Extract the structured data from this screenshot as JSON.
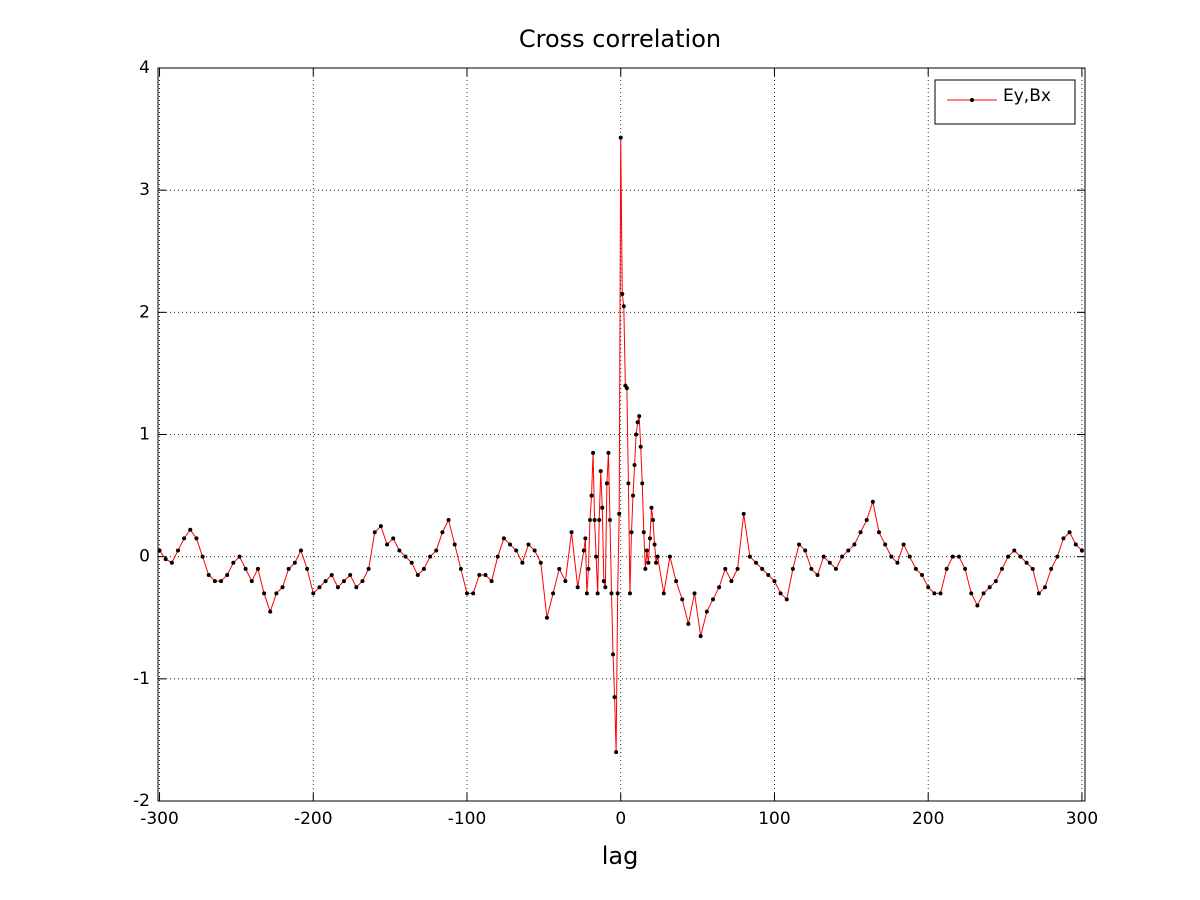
{
  "chart_data": {
    "type": "line",
    "title": "Cross correlation",
    "x_label": "lag",
    "x": [
      -300,
      -296,
      -292,
      -288,
      -284,
      -280,
      -276,
      -272,
      -268,
      -264,
      -260,
      -256,
      -252,
      -248,
      -244,
      -240,
      -236,
      -232,
      -228,
      -224,
      -220,
      -216,
      -212,
      -208,
      -204,
      -200,
      -196,
      -192,
      -188,
      -184,
      -180,
      -176,
      -172,
      -168,
      -164,
      -160,
      -156,
      -152,
      -148,
      -144,
      -140,
      -136,
      -132,
      -128,
      -124,
      -120,
      -116,
      -112,
      -108,
      -104,
      -100,
      -96,
      -92,
      -88,
      -84,
      -80,
      -76,
      -72,
      -68,
      -64,
      -60,
      -56,
      -52,
      -48,
      -44,
      -40,
      -36,
      -32,
      -28,
      -24,
      -23,
      -22,
      -21,
      -20,
      -19,
      -18,
      -17,
      -16,
      -15,
      -14,
      -13,
      -12,
      -11,
      -10,
      -9,
      -8,
      -7,
      -6,
      -5,
      -4,
      -3,
      -2,
      -1,
      0,
      1,
      2,
      3,
      4,
      5,
      6,
      7,
      8,
      9,
      10,
      11,
      12,
      13,
      14,
      15,
      16,
      17,
      18,
      19,
      20,
      21,
      22,
      23,
      24,
      28,
      32,
      36,
      40,
      44,
      48,
      52,
      56,
      60,
      64,
      68,
      72,
      76,
      80,
      84,
      88,
      92,
      96,
      100,
      104,
      108,
      112,
      116,
      120,
      124,
      128,
      132,
      136,
      140,
      144,
      148,
      152,
      156,
      160,
      164,
      168,
      172,
      176,
      180,
      184,
      188,
      192,
      196,
      200,
      204,
      208,
      212,
      216,
      220,
      224,
      228,
      232,
      236,
      240,
      244,
      248,
      252,
      256,
      260,
      264,
      268,
      272,
      276,
      280,
      284,
      288,
      292,
      296,
      300
    ],
    "series": [
      {
        "name": "Ey,Bx",
        "color": "#ff0000",
        "marker_color": "#000000",
        "values": [
          0.05,
          -0.02,
          -0.05,
          0.05,
          0.15,
          0.22,
          0.15,
          0,
          -0.15,
          -0.2,
          -0.2,
          -0.15,
          -0.05,
          0,
          -0.1,
          -0.2,
          -0.1,
          -0.3,
          -0.45,
          -0.3,
          -0.25,
          -0.1,
          -0.05,
          0.05,
          -0.1,
          -0.3,
          -0.25,
          -0.2,
          -0.15,
          -0.25,
          -0.2,
          -0.15,
          -0.25,
          -0.2,
          -0.1,
          0.2,
          0.25,
          0.1,
          0.15,
          0.05,
          0,
          -0.05,
          -0.15,
          -0.1,
          0,
          0.05,
          0.2,
          0.3,
          0.1,
          -0.1,
          -0.3,
          -0.3,
          -0.15,
          -0.15,
          -0.2,
          0,
          0.15,
          0.1,
          0.05,
          -0.05,
          0.1,
          0.05,
          -0.05,
          -0.5,
          -0.3,
          -0.1,
          -0.2,
          0.2,
          -0.25,
          0.05,
          0.15,
          -0.3,
          -0.1,
          0.3,
          0.5,
          0.85,
          0.3,
          0,
          -0.3,
          0.3,
          0.7,
          0.4,
          -0.2,
          -0.25,
          0.6,
          0.85,
          0.3,
          -0.3,
          -0.8,
          -1.15,
          -1.6,
          -0.3,
          0.35,
          3.43,
          2.15,
          2.05,
          1.4,
          1.38,
          0.6,
          -0.3,
          0.2,
          0.5,
          0.75,
          1,
          1.1,
          1.15,
          0.9,
          0.6,
          0.2,
          -0.1,
          0.05,
          -0.05,
          0.15,
          0.4,
          0.3,
          0.1,
          -0.05,
          0,
          -0.3,
          0,
          -0.2,
          -0.35,
          -0.55,
          -0.3,
          -0.65,
          -0.45,
          -0.35,
          -0.25,
          -0.1,
          -0.2,
          -0.1,
          0.35,
          0,
          -0.05,
          -0.1,
          -0.15,
          -0.2,
          -0.3,
          -0.35,
          -0.1,
          0.1,
          0.05,
          -0.1,
          -0.15,
          0,
          -0.05,
          -0.1,
          0,
          0.05,
          0.1,
          0.2,
          0.3,
          0.45,
          0.2,
          0.1,
          0,
          -0.05,
          0.1,
          0,
          -0.1,
          -0.15,
          -0.25,
          -0.3,
          -0.3,
          -0.1,
          0,
          0,
          -0.1,
          -0.3,
          -0.4,
          -0.3,
          -0.25,
          -0.2,
          -0.1,
          0,
          0.05,
          0,
          -0.05,
          -0.1,
          -0.3,
          -0.25,
          -0.1,
          0,
          0.15,
          0.2,
          0.1,
          0.05
        ]
      }
    ],
    "xlim": [
      -301,
      302
    ],
    "ylim": [
      -2,
      4
    ],
    "xticks": [
      -300,
      -200,
      -100,
      0,
      100,
      200,
      300
    ],
    "yticks": [
      -2,
      -1,
      0,
      1,
      2,
      3,
      4
    ],
    "grid": true,
    "legend": "upper right"
  }
}
